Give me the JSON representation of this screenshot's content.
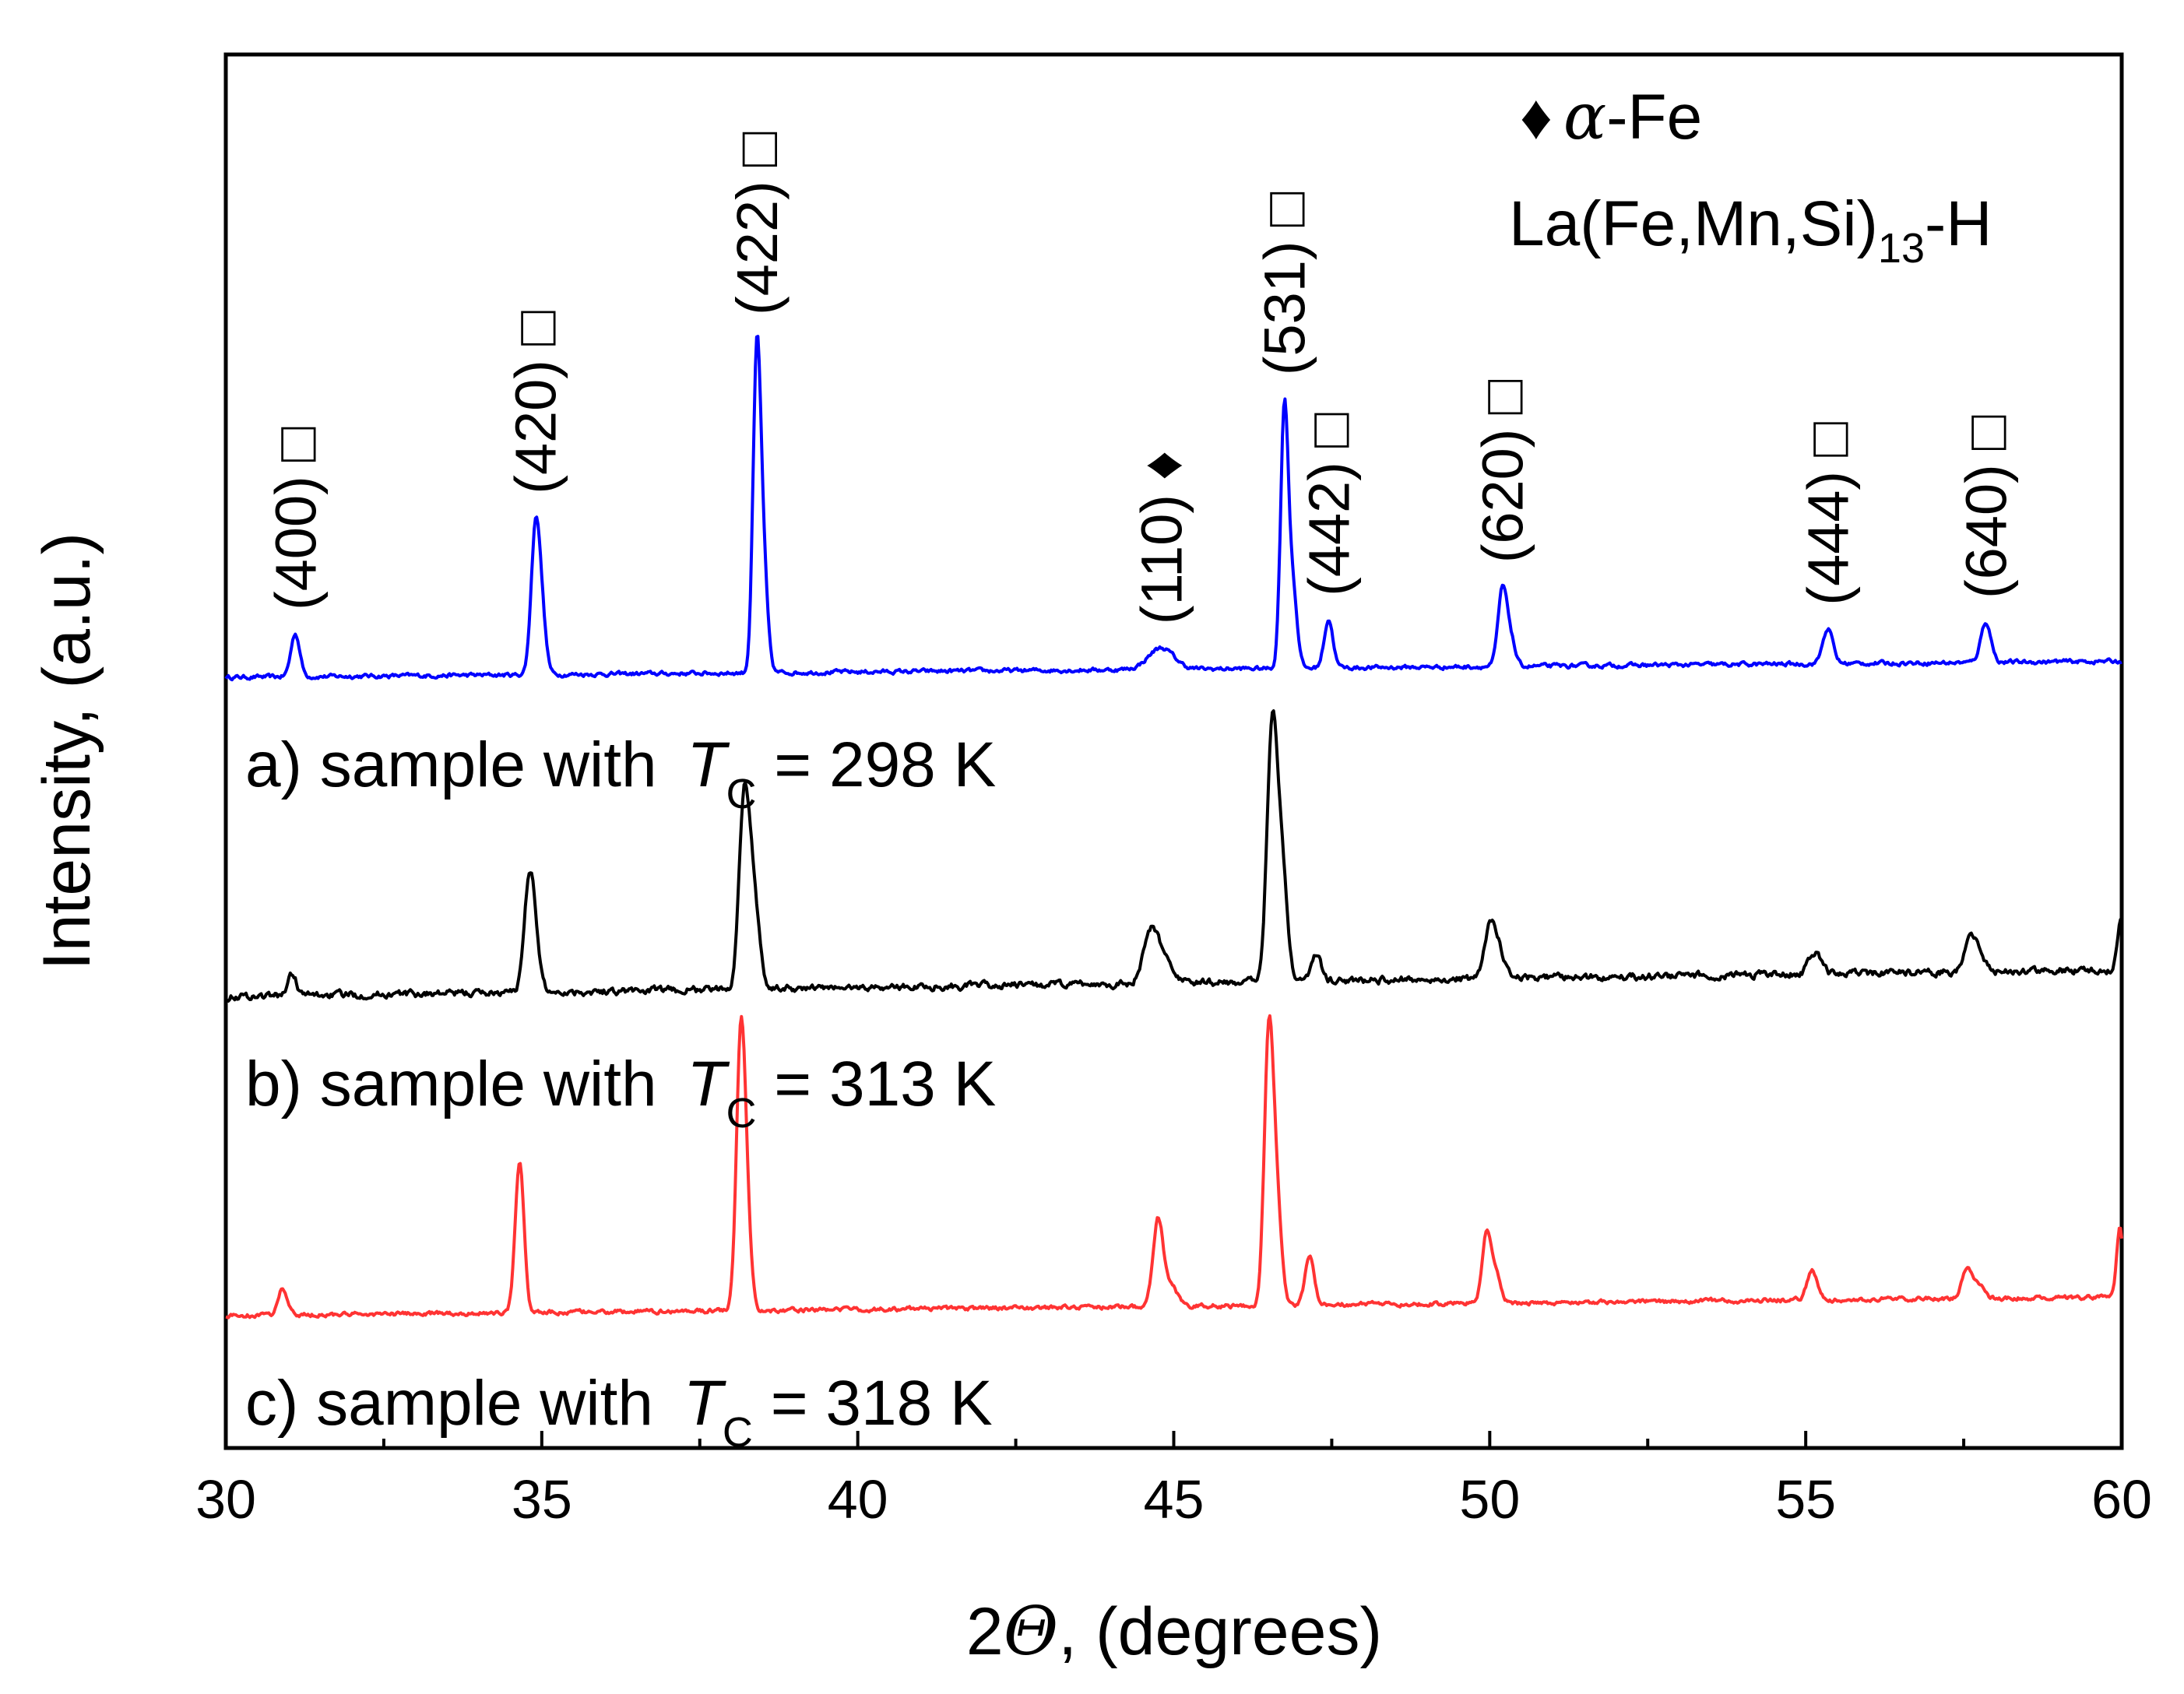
{
  "chart_data": {
    "type": "line",
    "title": "",
    "xlabel": {
      "prefix": "2",
      "symbol": "Θ",
      "suffix": ", (degrees)"
    },
    "ylabel": "Intensity, (a.u.)",
    "xlim": [
      30,
      60
    ],
    "x_ticks": [
      30,
      35,
      40,
      45,
      50,
      55,
      60
    ],
    "y_ticks_shown": false,
    "legend": {
      "alpha_fe": {
        "marker": "♦",
        "symbol": "α",
        "text": "-Fe"
      },
      "phase": {
        "text": "La(Fe,Mn,Si)",
        "subscript": "13",
        "suffix": "-H"
      }
    },
    "peak_annotations": [
      {
        "hkl": "(400)",
        "marker": "□",
        "two_theta": 31.1
      },
      {
        "hkl": "(420)",
        "marker": "□",
        "two_theta": 34.9
      },
      {
        "hkl": "(422)",
        "marker": "□",
        "two_theta": 38.4
      },
      {
        "hkl": "(110)",
        "marker": "♦",
        "two_theta": 44.8
      },
      {
        "hkl": "(531)",
        "marker": "□",
        "two_theta": 46.75
      },
      {
        "hkl": "(442)",
        "marker": "□",
        "two_theta": 47.45
      },
      {
        "hkl": "(620)",
        "marker": "□",
        "two_theta": 50.2
      },
      {
        "hkl": "(444)",
        "marker": "□",
        "two_theta": 55.35
      },
      {
        "hkl": "(640)",
        "marker": "□",
        "two_theta": 57.85
      }
    ],
    "series": [
      {
        "name": "a",
        "label_prefix": "a) sample with ",
        "label_T": "T",
        "label_sub": "C",
        "label_suffix": " = 298 K",
        "color": "#0000ff",
        "offset": 2.0,
        "baseline_start": 0.0,
        "baseline_end": 0.06,
        "peaks": [
          {
            "x": 31.1,
            "h": 0.16,
            "w": 0.07
          },
          {
            "x": 34.9,
            "h": 0.52,
            "w": 0.07
          },
          {
            "x": 35.0,
            "h": 0.18,
            "w": 0.07
          },
          {
            "x": 38.4,
            "h": 1.1,
            "w": 0.06
          },
          {
            "x": 38.5,
            "h": 0.4,
            "w": 0.07
          },
          {
            "x": 44.8,
            "h": 0.08,
            "w": 0.2
          },
          {
            "x": 46.75,
            "h": 0.95,
            "w": 0.06
          },
          {
            "x": 46.88,
            "h": 0.3,
            "w": 0.07
          },
          {
            "x": 47.45,
            "h": 0.18,
            "w": 0.07
          },
          {
            "x": 50.2,
            "h": 0.28,
            "w": 0.07
          },
          {
            "x": 50.33,
            "h": 0.1,
            "w": 0.07
          },
          {
            "x": 55.35,
            "h": 0.13,
            "w": 0.08
          },
          {
            "x": 57.85,
            "h": 0.15,
            "w": 0.08
          }
        ]
      },
      {
        "name": "b",
        "label_prefix": "b) sample with ",
        "label_T": "T",
        "label_sub": "C",
        "label_suffix": " = 313 K",
        "color": "#000000",
        "offset": 1.0,
        "baseline_start": 0.0,
        "baseline_end": 0.1,
        "peaks": [
          {
            "x": 31.05,
            "h": 0.08,
            "w": 0.07
          },
          {
            "x": 34.8,
            "h": 0.4,
            "w": 0.08
          },
          {
            "x": 34.9,
            "h": 0.12,
            "w": 0.08
          },
          {
            "x": 38.2,
            "h": 0.68,
            "w": 0.08
          },
          {
            "x": 38.35,
            "h": 0.35,
            "w": 0.09
          },
          {
            "x": 44.65,
            "h": 0.2,
            "w": 0.12
          },
          {
            "x": 44.9,
            "h": 0.07,
            "w": 0.12
          },
          {
            "x": 46.55,
            "h": 0.88,
            "w": 0.08
          },
          {
            "x": 46.7,
            "h": 0.45,
            "w": 0.09
          },
          {
            "x": 47.25,
            "h": 0.1,
            "w": 0.08
          },
          {
            "x": 50.0,
            "h": 0.2,
            "w": 0.08
          },
          {
            "x": 50.15,
            "h": 0.1,
            "w": 0.08
          },
          {
            "x": 55.15,
            "h": 0.08,
            "w": 0.1
          },
          {
            "x": 57.6,
            "h": 0.12,
            "w": 0.09
          },
          {
            "x": 57.75,
            "h": 0.05,
            "w": 0.09
          },
          {
            "x": 59.98,
            "h": 0.18,
            "w": 0.05
          }
        ]
      },
      {
        "name": "c",
        "label_prefix": "c) sample with ",
        "label_T": "T",
        "label_sub": "C",
        "label_suffix": " = 318 K",
        "color": "#ff3333",
        "offset": 0.0,
        "baseline_start": 0.0,
        "baseline_end": 0.07,
        "peaks": [
          {
            "x": 30.9,
            "h": 0.1,
            "w": 0.07
          },
          {
            "x": 34.65,
            "h": 0.56,
            "w": 0.07
          },
          {
            "x": 38.15,
            "h": 1.0,
            "w": 0.07
          },
          {
            "x": 38.25,
            "h": 0.25,
            "w": 0.07
          },
          {
            "x": 44.75,
            "h": 0.32,
            "w": 0.08
          },
          {
            "x": 44.95,
            "h": 0.08,
            "w": 0.1
          },
          {
            "x": 46.5,
            "h": 0.94,
            "w": 0.07
          },
          {
            "x": 46.62,
            "h": 0.4,
            "w": 0.08
          },
          {
            "x": 47.15,
            "h": 0.18,
            "w": 0.07
          },
          {
            "x": 49.95,
            "h": 0.26,
            "w": 0.07
          },
          {
            "x": 50.1,
            "h": 0.1,
            "w": 0.07
          },
          {
            "x": 55.1,
            "h": 0.11,
            "w": 0.08
          },
          {
            "x": 57.55,
            "h": 0.11,
            "w": 0.08
          },
          {
            "x": 57.75,
            "h": 0.05,
            "w": 0.08
          },
          {
            "x": 59.97,
            "h": 0.26,
            "w": 0.05
          }
        ]
      }
    ]
  }
}
